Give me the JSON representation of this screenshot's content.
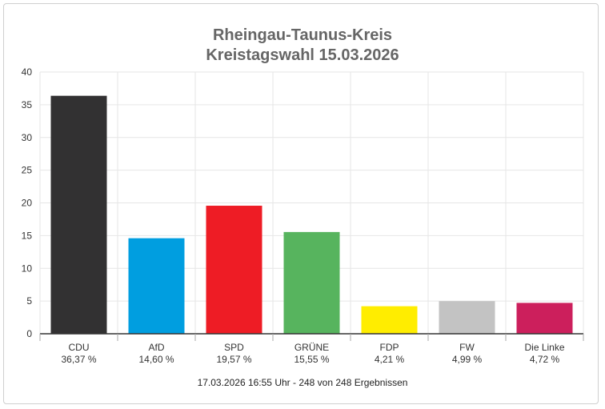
{
  "chart_data": {
    "type": "bar",
    "title": "Rheingau-Taunus-Kreis",
    "subtitle": "Kreistagswahl 15.03.2026",
    "categories": [
      "CDU",
      "AfD",
      "SPD",
      "GRÜNE",
      "FDP",
      "FW",
      "Die Linke"
    ],
    "values": [
      36.37,
      14.6,
      19.57,
      15.55,
      4.21,
      4.99,
      4.72
    ],
    "value_labels": [
      "36,37 %",
      "14,60 %",
      "19,57 %",
      "15,55 %",
      "4,21 %",
      "4,99 %",
      "4,72 %"
    ],
    "colors": [
      "#323132",
      "#009ee0",
      "#ee1c25",
      "#57b45e",
      "#ffed00",
      "#c3c3c3",
      "#cc1f5c"
    ],
    "ylim": [
      0,
      40
    ],
    "yticks": [
      0,
      5,
      10,
      15,
      20,
      25,
      30,
      35,
      40
    ],
    "grid": true,
    "footer": "17.03.2026 16:55 Uhr - 248 von 248 Ergebnissen"
  }
}
